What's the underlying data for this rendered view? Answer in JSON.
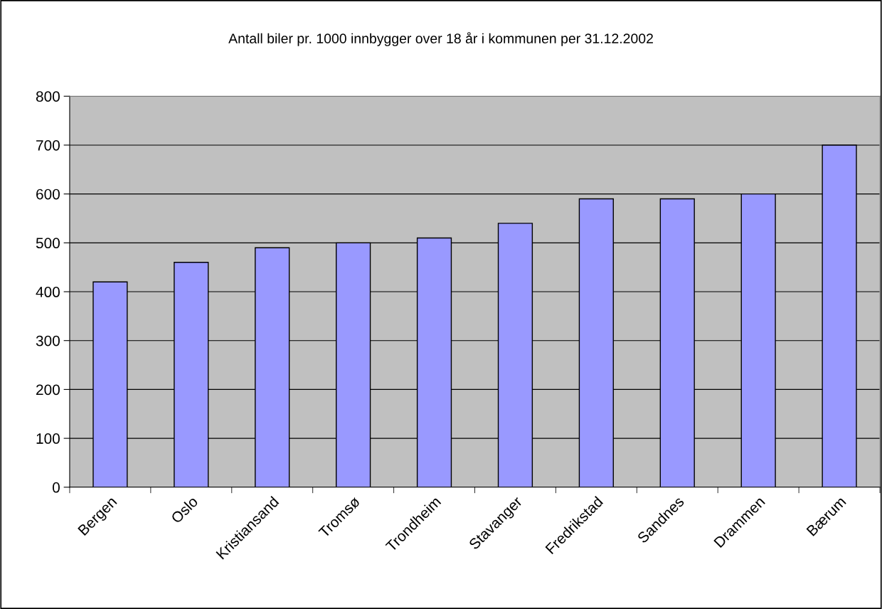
{
  "chart_data": {
    "type": "bar",
    "title": "Antall biler pr. 1000 innbygger over 18 år i kommunen per 31.12.2002",
    "categories": [
      "Bergen",
      "Oslo",
      "Kristiansand",
      "Tromsø",
      "Trondheim",
      "Stavanger",
      "Fredrikstad",
      "Sandnes",
      "Drammen",
      "Bærum"
    ],
    "values": [
      420,
      460,
      490,
      500,
      510,
      540,
      590,
      590,
      600,
      700
    ],
    "color": "#9999ff",
    "ylim": [
      0,
      800
    ],
    "yticks": [
      0,
      100,
      200,
      300,
      400,
      500,
      600,
      700,
      800
    ],
    "grid": "y"
  }
}
